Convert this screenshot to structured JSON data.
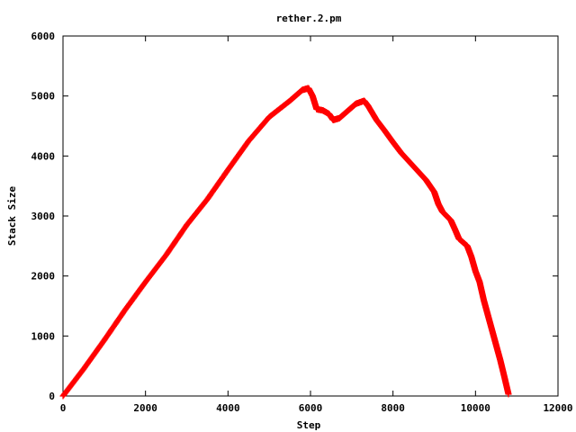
{
  "chart_data": {
    "type": "scatter",
    "title": "rether.2.pm",
    "xlabel": "Step",
    "ylabel": "Stack Size",
    "xlim": [
      0,
      12000
    ],
    "ylim": [
      0,
      6000
    ],
    "xticks": [
      "0",
      "2000",
      "4000",
      "6000",
      "8000",
      "10000",
      "12000"
    ],
    "yticks": [
      "0",
      "1000",
      "2000",
      "3000",
      "4000",
      "5000",
      "6000"
    ],
    "grid": false,
    "legend": "none",
    "marker": "plus",
    "series_color": "#ff0000",
    "profile": [
      [
        0,
        0
      ],
      [
        500,
        450
      ],
      [
        1000,
        930
      ],
      [
        1500,
        1430
      ],
      [
        2000,
        1900
      ],
      [
        2500,
        2350
      ],
      [
        3000,
        2850
      ],
      [
        3500,
        3280
      ],
      [
        4000,
        3770
      ],
      [
        4500,
        4250
      ],
      [
        5000,
        4650
      ],
      [
        5500,
        4920
      ],
      [
        5800,
        5100
      ],
      [
        5950,
        5130
      ],
      [
        6050,
        5000
      ],
      [
        6150,
        4780
      ],
      [
        6300,
        4760
      ],
      [
        6450,
        4700
      ],
      [
        6550,
        4600
      ],
      [
        6700,
        4630
      ],
      [
        6900,
        4750
      ],
      [
        7100,
        4870
      ],
      [
        7300,
        4920
      ],
      [
        7400,
        4830
      ],
      [
        7600,
        4600
      ],
      [
        7800,
        4420
      ],
      [
        8000,
        4230
      ],
      [
        8200,
        4050
      ],
      [
        8400,
        3900
      ],
      [
        8600,
        3750
      ],
      [
        8800,
        3600
      ],
      [
        9000,
        3400
      ],
      [
        9100,
        3200
      ],
      [
        9200,
        3070
      ],
      [
        9400,
        2930
      ],
      [
        9500,
        2780
      ],
      [
        9600,
        2620
      ],
      [
        9800,
        2500
      ],
      [
        9900,
        2320
      ],
      [
        10000,
        2080
      ],
      [
        10100,
        1900
      ],
      [
        10200,
        1600
      ],
      [
        10300,
        1350
      ],
      [
        10400,
        1100
      ],
      [
        10500,
        850
      ],
      [
        10600,
        600
      ],
      [
        10700,
        320
      ],
      [
        10800,
        30
      ]
    ]
  }
}
